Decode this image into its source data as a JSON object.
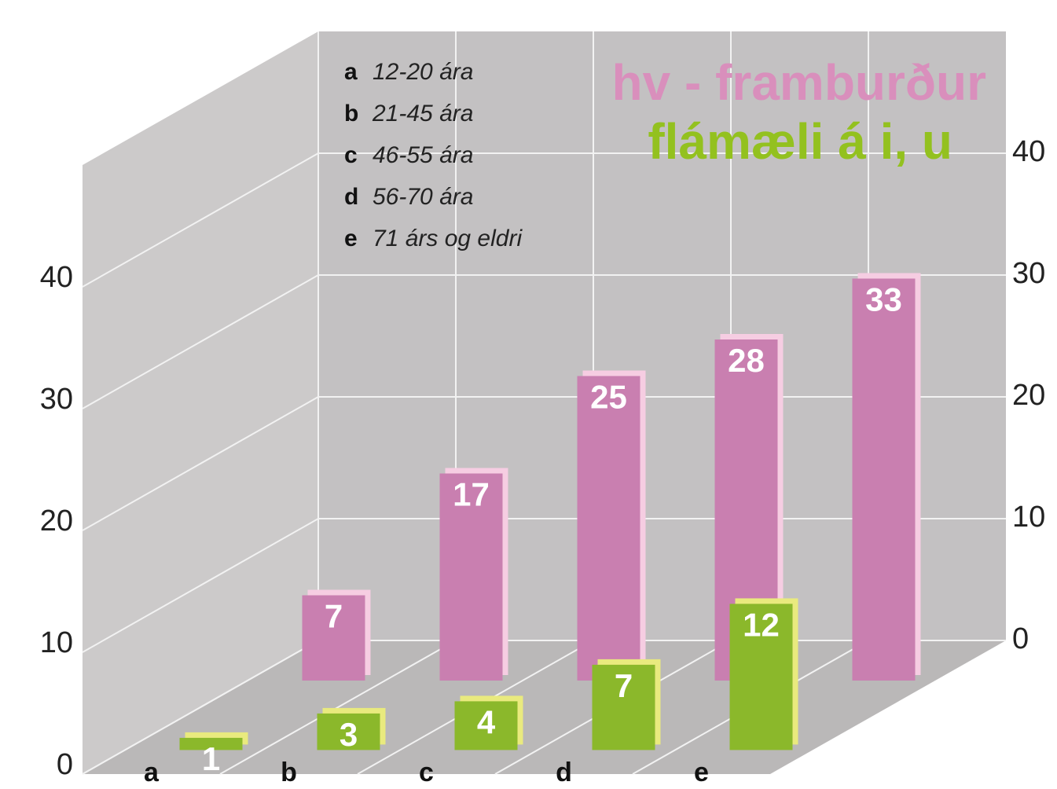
{
  "chart_data": {
    "type": "bar3d",
    "categories": [
      "a",
      "b",
      "c",
      "d",
      "e"
    ],
    "category_descriptions": [
      "12-20 ára",
      "21-45 ára",
      "46-55 ára",
      "56-70 ára",
      "71 árs og eldri"
    ],
    "series": [
      {
        "name": "hv - framburður",
        "color": "#c97fb0",
        "edge_color": "#f6cde2",
        "values": [
          7,
          17,
          25,
          28,
          33
        ]
      },
      {
        "name": "flámæli á i, u",
        "color": "#8bb82b",
        "edge_color": "#e9ea7e",
        "values": [
          1,
          3,
          4,
          7,
          12
        ]
      }
    ],
    "ylim": [
      0,
      50
    ],
    "yticks": [
      0,
      10,
      20,
      30,
      40
    ],
    "y2lim": [
      0,
      50
    ],
    "y2ticks": [
      0,
      10,
      20,
      30,
      40
    ],
    "grid": true
  }
}
